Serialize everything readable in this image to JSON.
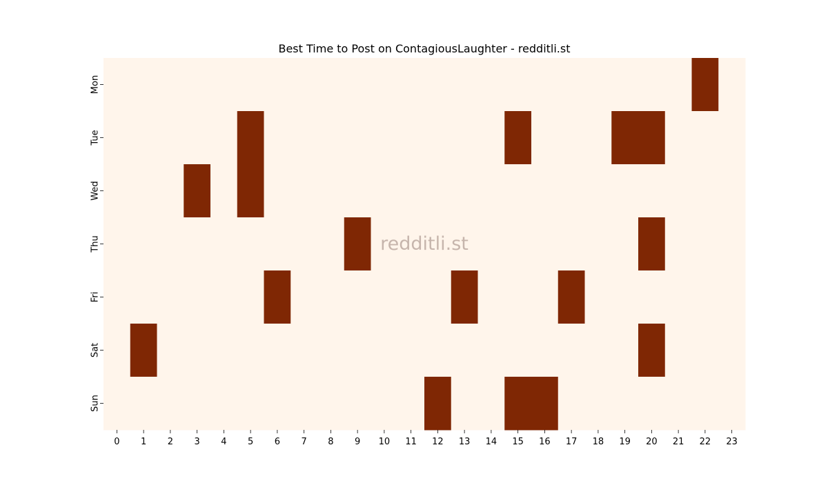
{
  "chart_data": {
    "type": "heatmap",
    "title": "Best Time to Post on ContagiousLaughter - redditli.st",
    "watermark": "redditli.st",
    "x_labels": [
      "0",
      "1",
      "2",
      "3",
      "4",
      "5",
      "6",
      "7",
      "8",
      "9",
      "10",
      "11",
      "12",
      "13",
      "14",
      "15",
      "16",
      "17",
      "18",
      "19",
      "20",
      "21",
      "22",
      "23"
    ],
    "y_labels": [
      "Mon",
      "Tue",
      "Wed",
      "Thu",
      "Fri",
      "Sat",
      "Sun"
    ],
    "values": [
      [
        0,
        0,
        0,
        0,
        0,
        0,
        0,
        0,
        0,
        0,
        0,
        0,
        0,
        0,
        0,
        0,
        0,
        0,
        0,
        0,
        0,
        0,
        1,
        0
      ],
      [
        0,
        0,
        0,
        0,
        0,
        1,
        0,
        0,
        0,
        0,
        0,
        0,
        0,
        0,
        0,
        1,
        0,
        0,
        0,
        1,
        1,
        0,
        0,
        0
      ],
      [
        0,
        0,
        0,
        1,
        0,
        1,
        0,
        0,
        0,
        0,
        0,
        0,
        0,
        0,
        0,
        0,
        0,
        0,
        0,
        0,
        0,
        0,
        0,
        0
      ],
      [
        0,
        0,
        0,
        0,
        0,
        0,
        0,
        0,
        0,
        1,
        0,
        0,
        0,
        0,
        0,
        0,
        0,
        0,
        0,
        0,
        1,
        0,
        0,
        0
      ],
      [
        0,
        0,
        0,
        0,
        0,
        0,
        1,
        0,
        0,
        0,
        0,
        0,
        0,
        1,
        0,
        0,
        0,
        1,
        0,
        0,
        0,
        0,
        0,
        0
      ],
      [
        0,
        1,
        0,
        0,
        0,
        0,
        0,
        0,
        0,
        0,
        0,
        0,
        0,
        0,
        0,
        0,
        0,
        0,
        0,
        0,
        1,
        0,
        0,
        0
      ],
      [
        0,
        0,
        0,
        0,
        0,
        0,
        0,
        0,
        0,
        0,
        0,
        0,
        1,
        0,
        0,
        1,
        1,
        0,
        0,
        0,
        0,
        0,
        0,
        0
      ]
    ],
    "colors": {
      "low": "#fff5eb",
      "high": "#7f2704"
    },
    "grid": false,
    "legend": "none"
  }
}
